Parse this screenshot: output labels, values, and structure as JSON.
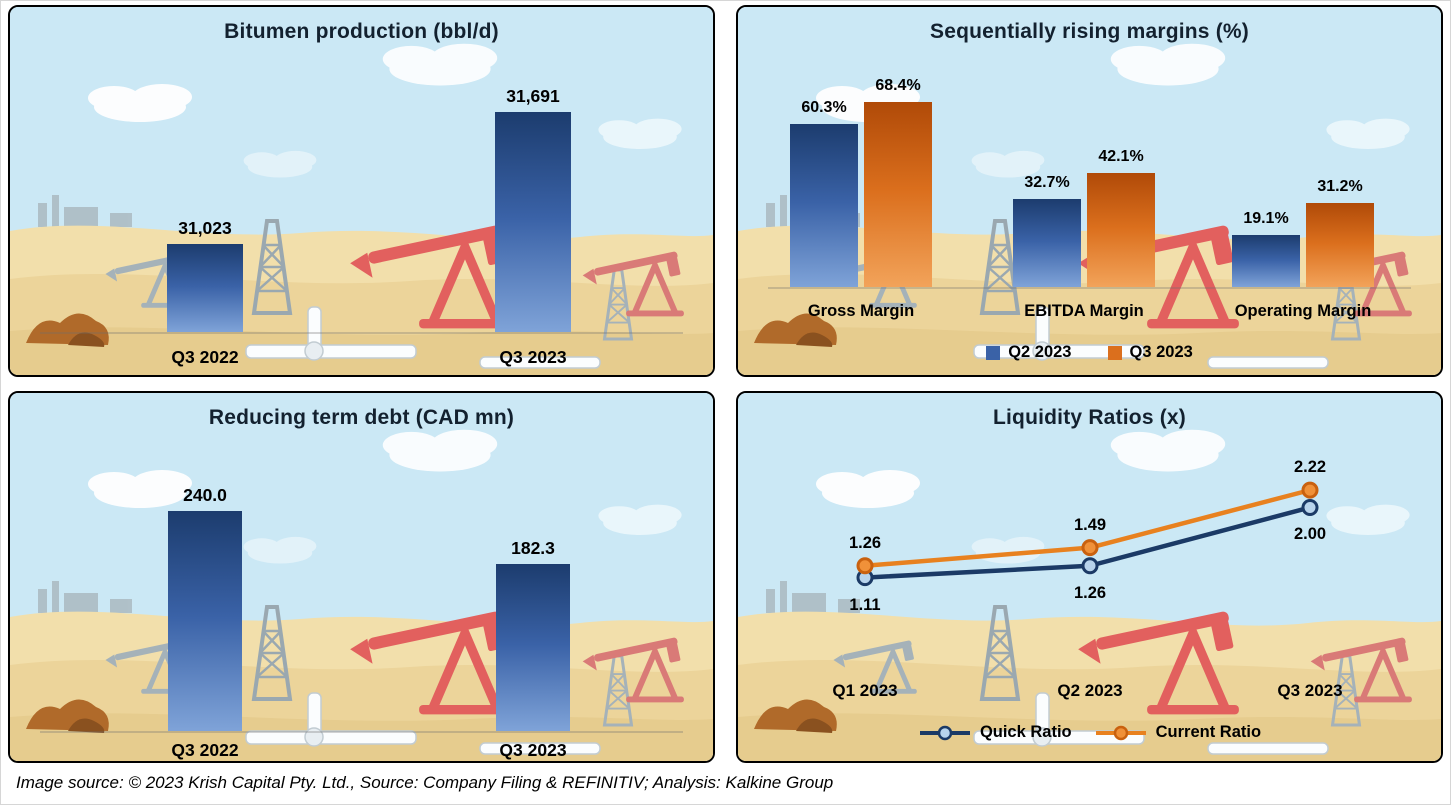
{
  "footer": {
    "text": "Image source: © 2023 Krish Capital Pty. Ltd., Source: Company Filing & REFINITIV; Analysis: Kalkine Group"
  },
  "colors": {
    "blue": [
      "#1c3c6e",
      "#3a62a7",
      "#7fa3d8"
    ],
    "orange": [
      "#b04a08",
      "#db6f1d",
      "#f2a35a"
    ],
    "navy_line": "#1b3a66",
    "orange_line": "#e8811f",
    "quick_marker_fill": "#b8d4ec",
    "current_marker_fill": "#f09139",
    "current_marker_stroke": "#c9610f",
    "sky": "#cbe8f5",
    "sand": "#f2dfab",
    "title_color": "#13212f"
  },
  "chart_data": [
    {
      "id": "bitumen-production",
      "type": "bar",
      "title": "Bitumen production (bbl/d)",
      "categories": [
        "Q3 2022",
        "Q3 2023"
      ],
      "values": [
        31023,
        31691
      ],
      "labels": [
        "31,023",
        "31,691"
      ],
      "bar_color": "blue",
      "ylim": [
        30580,
        31740
      ],
      "grid": false,
      "legend_position": "none"
    },
    {
      "id": "margins",
      "type": "bar",
      "title": "Sequentially rising margins (%)",
      "categories": [
        "Gross Margin",
        "EBITDA Margin",
        "Operating Margin"
      ],
      "series": [
        {
          "name": "Q2 2023",
          "values": [
            60.3,
            32.7,
            19.1
          ],
          "labels": [
            "60.3%",
            "32.7%",
            "19.1%"
          ],
          "color": "blue"
        },
        {
          "name": "Q3 2023",
          "values": [
            68.4,
            42.1,
            31.2
          ],
          "labels": [
            "68.4%",
            "42.1%",
            "31.2%"
          ],
          "color": "orange"
        }
      ],
      "ylim": [
        0,
        85
      ],
      "grid": false,
      "legend_position": "bottom"
    },
    {
      "id": "term-debt",
      "type": "bar",
      "title": "Reducing term debt (CAD mn)",
      "categories": [
        "Q3 2022",
        "Q3 2023"
      ],
      "values": [
        240.0,
        182.3
      ],
      "labels": [
        "240.0",
        "182.3"
      ],
      "bar_color": "blue",
      "ylim": [
        0,
        260
      ],
      "grid": false,
      "legend_position": "none"
    },
    {
      "id": "liquidity-ratios",
      "type": "line",
      "title": "Liquidity Ratios (x)",
      "categories": [
        "Q1 2023",
        "Q2 2023",
        "Q3 2023"
      ],
      "series": [
        {
          "name": "Quick Ratio",
          "values": [
            1.11,
            1.26,
            2.0
          ],
          "labels": [
            "1.11",
            "1.26",
            "2.00"
          ],
          "line_color": "navy_line",
          "marker_fill": "quick_marker_fill",
          "marker_stroke": "navy_line",
          "label_position": "below"
        },
        {
          "name": "Current Ratio",
          "values": [
            1.26,
            1.49,
            2.22
          ],
          "labels": [
            "1.26",
            "1.49",
            "2.22"
          ],
          "line_color": "orange_line",
          "marker_fill": "current_marker_fill",
          "marker_stroke": "current_marker_stroke",
          "label_position": "above"
        }
      ],
      "ylim": [
        0.8,
        2.45
      ],
      "grid": false,
      "legend_position": "bottom"
    }
  ]
}
